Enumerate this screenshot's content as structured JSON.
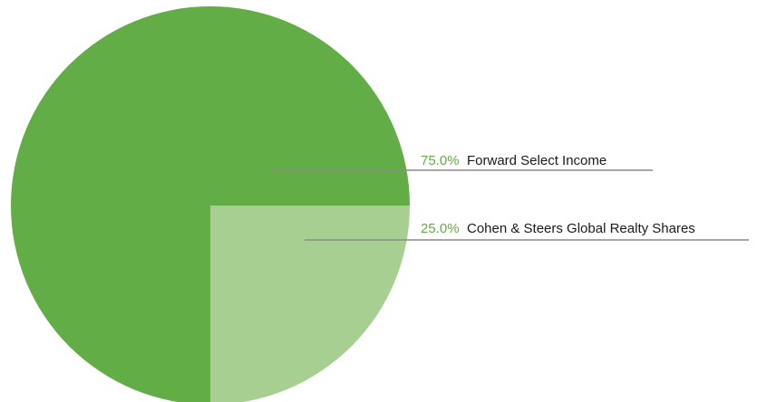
{
  "chart_data": {
    "type": "pie",
    "slices": [
      {
        "label": "Forward Select Income",
        "value": 75.0,
        "percent_label": "75.0%",
        "color": "#62ad45"
      },
      {
        "label": "Cohen & Steers Global Realty Shares",
        "value": 25.0,
        "percent_label": "25.0%",
        "color": "#a8cf92"
      }
    ],
    "start_position": "bottom, clockwise",
    "legend": "leader-line labels right of pie",
    "colors": {
      "percent_text": "#62ad45",
      "leader_line": "#8a8a8a"
    }
  }
}
